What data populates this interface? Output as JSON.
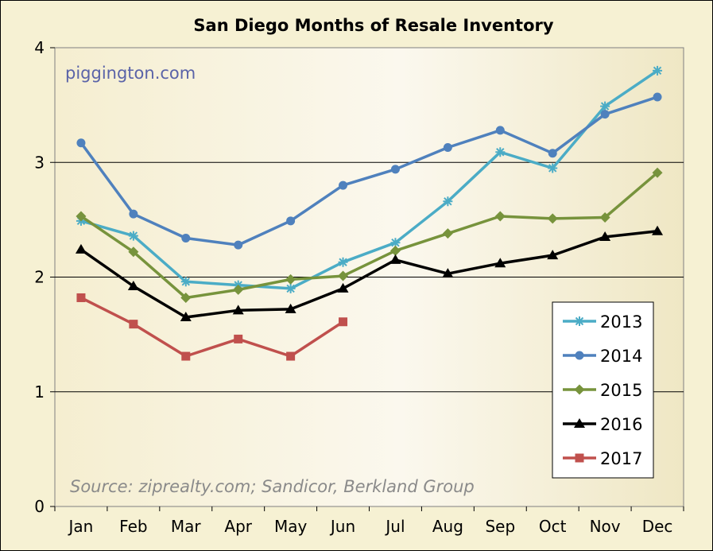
{
  "chart_data": {
    "type": "line",
    "title": "San Diego Months of Resale Inventory",
    "watermark": "piggington.com",
    "source": "Source: ziprealty.com; Sandicor, Berkland Group",
    "categories": [
      "Jan",
      "Feb",
      "Mar",
      "Apr",
      "May",
      "Jun",
      "Jul",
      "Aug",
      "Sep",
      "Oct",
      "Nov",
      "Dec"
    ],
    "ylim": [
      0,
      4
    ],
    "yticks": [
      0,
      1,
      2,
      3,
      4
    ],
    "ytick_labels": [
      "0",
      "1",
      "2",
      "3",
      "4"
    ],
    "grid": "horizontal",
    "legend_position": "bottom-right",
    "series": [
      {
        "name": "2013",
        "color": "#4bacc6",
        "marker": "asterisk",
        "values": [
          2.49,
          2.36,
          1.96,
          1.93,
          1.9,
          2.13,
          2.3,
          2.66,
          3.09,
          2.95,
          3.49,
          3.8
        ]
      },
      {
        "name": "2014",
        "color": "#4f81bd",
        "marker": "circle",
        "values": [
          3.17,
          2.55,
          2.34,
          2.28,
          2.49,
          2.8,
          2.94,
          3.13,
          3.28,
          3.08,
          3.42,
          3.57
        ]
      },
      {
        "name": "2015",
        "color": "#77933c",
        "marker": "diamond",
        "values": [
          2.53,
          2.22,
          1.82,
          1.89,
          1.98,
          2.01,
          2.23,
          2.38,
          2.53,
          2.51,
          2.52,
          2.91
        ]
      },
      {
        "name": "2016",
        "color": "#000000",
        "marker": "triangle",
        "values": [
          2.24,
          1.92,
          1.65,
          1.71,
          1.72,
          1.9,
          2.15,
          2.03,
          2.12,
          2.19,
          2.35,
          2.4
        ]
      },
      {
        "name": "2017",
        "color": "#c0504d",
        "marker": "square",
        "values": [
          1.82,
          1.59,
          1.31,
          1.46,
          1.31,
          1.61,
          null,
          null,
          null,
          null,
          null,
          null
        ]
      }
    ]
  }
}
